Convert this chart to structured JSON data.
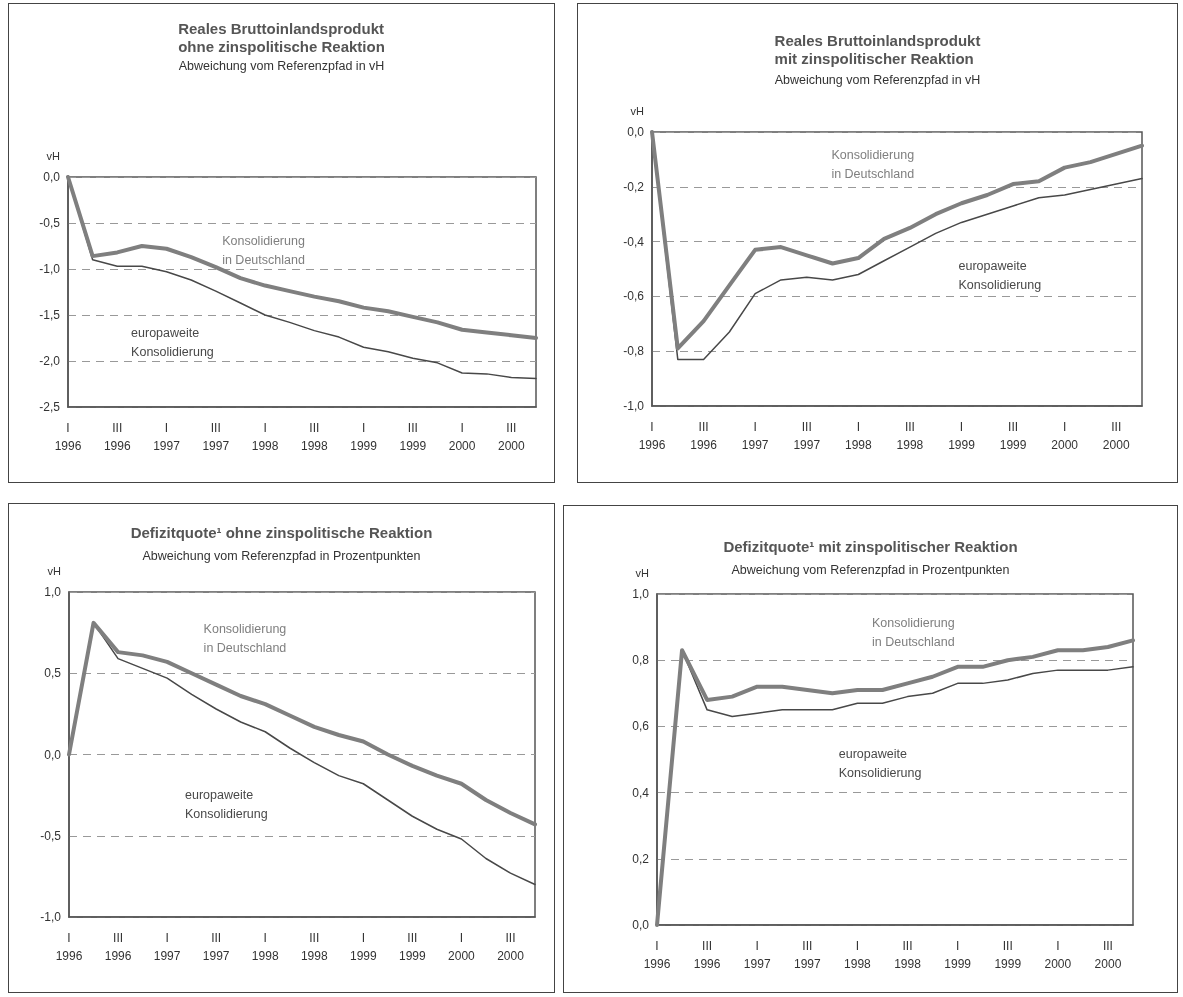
{
  "chart_data": [
    {
      "type": "line",
      "title": "Reales Bruttoinlandsprodukt\nohne zinspolitische Reaktion",
      "subtitle": "Abweichung vom Referenzpfad in vH",
      "ylabel": "vH",
      "categories": [
        "I\n1996",
        null,
        "III\n1996",
        null,
        "I\n1997",
        null,
        "III\n1997",
        null,
        "I\n1998",
        null,
        "III\n1998",
        null,
        "I\n1999",
        null,
        "III\n1999",
        null,
        "I\n2000",
        null,
        "III\n2000",
        null
      ],
      "series": [
        {
          "name": "Konsolidierung\nin Deutschland",
          "color": "#7f7f7f",
          "values": [
            0.0,
            -0.86,
            -0.82,
            -0.75,
            -0.78,
            -0.87,
            -0.98,
            -1.1,
            -1.18,
            -1.24,
            -1.3,
            -1.35,
            -1.42,
            -1.46,
            -1.52,
            -1.58,
            -1.66,
            -1.69,
            -1.72,
            -1.75
          ]
        },
        {
          "name": "europaweite\nKonsolidierung",
          "color": "#484848",
          "values": [
            0.0,
            -0.9,
            -0.97,
            -0.97,
            -1.03,
            -1.12,
            -1.24,
            -1.37,
            -1.5,
            -1.58,
            -1.67,
            -1.74,
            -1.85,
            -1.9,
            -1.97,
            -2.02,
            -2.13,
            -2.14,
            -2.18,
            -2.19
          ]
        }
      ],
      "ylim": [
        -2.5,
        0
      ],
      "yticks": [
        {
          "value": -2.5,
          "label": "-2,5"
        },
        {
          "value": -2,
          "label": "-2,0"
        },
        {
          "value": -1.5,
          "label": "-1,5"
        },
        {
          "value": -1,
          "label": "-1,0"
        },
        {
          "value": -0.5,
          "label": "-0,5"
        },
        {
          "value": 0,
          "label": "0,0"
        }
      ],
      "grid": "y",
      "legend": false,
      "marker": "none"
    },
    {
      "type": "line",
      "title": "Reales Bruttoinlandsprodukt\nmit zinspolitischer Reaktion",
      "subtitle": "Abweichung vom Referenzpfad in vH",
      "ylabel": "vH",
      "categories": [
        "I\n1996",
        null,
        "III\n1996",
        null,
        "I\n1997",
        null,
        "III\n1997",
        null,
        "I\n1998",
        null,
        "III\n1998",
        null,
        "I\n1999",
        null,
        "III\n1999",
        null,
        "I\n2000",
        null,
        "III\n2000",
        null
      ],
      "series": [
        {
          "name": "Konsolidierung\nin Deutschland",
          "color": "#7f7f7f",
          "values": [
            0.0,
            -0.79,
            -0.69,
            -0.56,
            -0.43,
            -0.42,
            -0.45,
            -0.48,
            -0.46,
            -0.39,
            -0.35,
            -0.3,
            -0.26,
            -0.23,
            -0.19,
            -0.18,
            -0.13,
            -0.11,
            -0.08,
            -0.05
          ]
        },
        {
          "name": "europaweite\nKonsolidierung",
          "color": "#484848",
          "values": [
            0.0,
            -0.83,
            -0.83,
            -0.73,
            -0.59,
            -0.54,
            -0.53,
            -0.54,
            -0.52,
            -0.47,
            -0.42,
            -0.37,
            -0.33,
            -0.3,
            -0.27,
            -0.24,
            -0.23,
            -0.21,
            -0.19,
            -0.17
          ]
        }
      ],
      "ylim": [
        -1,
        0
      ],
      "yticks": [
        {
          "value": -1,
          "label": "-1,0"
        },
        {
          "value": -0.8,
          "label": "-0,8"
        },
        {
          "value": -0.6,
          "label": "-0,6"
        },
        {
          "value": -0.4,
          "label": "-0,4"
        },
        {
          "value": -0.2,
          "label": "-0,2"
        },
        {
          "value": 0,
          "label": "0,0"
        }
      ],
      "grid": "y",
      "legend": false,
      "marker": "none"
    },
    {
      "type": "line",
      "title": "Defizitquote¹ ohne zinspolitische Reaktion",
      "subtitle": "Abweichung vom Referenzpfad in Prozentpunkten",
      "ylabel": "vH",
      "categories": [
        "I\n1996",
        null,
        "III\n1996",
        null,
        "I\n1997",
        null,
        "III\n1997",
        null,
        "I\n1998",
        null,
        "III\n1998",
        null,
        "I\n1999",
        null,
        "III\n1999",
        null,
        "I\n2000",
        null,
        "III\n2000",
        null
      ],
      "series": [
        {
          "name": "Konsolidierung\nin Deutschland",
          "color": "#7f7f7f",
          "values": [
            0.0,
            0.81,
            0.63,
            0.61,
            0.57,
            0.5,
            0.43,
            0.36,
            0.31,
            0.24,
            0.17,
            0.12,
            0.08,
            0.0,
            -0.07,
            -0.13,
            -0.18,
            -0.28,
            -0.36,
            -0.43
          ]
        },
        {
          "name": "europaweite\nKonsolidierung",
          "color": "#484848",
          "values": [
            0.0,
            0.81,
            0.59,
            0.53,
            0.47,
            0.37,
            0.28,
            0.2,
            0.14,
            0.04,
            -0.05,
            -0.13,
            -0.18,
            -0.28,
            -0.38,
            -0.46,
            -0.52,
            -0.64,
            -0.73,
            -0.8
          ]
        }
      ],
      "ylim": [
        -1,
        1
      ],
      "yticks": [
        {
          "value": -1,
          "label": "-1,0"
        },
        {
          "value": -0.5,
          "label": "-0,5"
        },
        {
          "value": 0,
          "label": "0,0"
        },
        {
          "value": 0.5,
          "label": "0,5"
        },
        {
          "value": 1,
          "label": "1,0"
        }
      ],
      "grid": "y",
      "legend": false,
      "marker": "none"
    },
    {
      "type": "line",
      "title": "Defizitquote¹ mit zinspolitischer Reaktion",
      "subtitle": "Abweichung vom Referenzpfad in Prozentpunkten",
      "ylabel": "vH",
      "categories": [
        "I\n1996",
        null,
        "III\n1996",
        null,
        "I\n1997",
        null,
        "III\n1997",
        null,
        "I\n1998",
        null,
        "III\n1998",
        null,
        "I\n1999",
        null,
        "III\n1999",
        null,
        "I\n2000",
        null,
        "III\n2000",
        null
      ],
      "series": [
        {
          "name": "Konsolidierung\nin Deutschland",
          "color": "#7f7f7f",
          "values": [
            0.0,
            0.83,
            0.68,
            0.69,
            0.72,
            0.72,
            0.71,
            0.7,
            0.71,
            0.71,
            0.73,
            0.75,
            0.78,
            0.78,
            0.8,
            0.81,
            0.83,
            0.83,
            0.84,
            0.86
          ]
        },
        {
          "name": "europaweite\nKonsolidierung",
          "color": "#484848",
          "values": [
            0.0,
            0.83,
            0.65,
            0.63,
            0.64,
            0.65,
            0.65,
            0.65,
            0.67,
            0.67,
            0.69,
            0.7,
            0.73,
            0.73,
            0.74,
            0.76,
            0.77,
            0.77,
            0.77,
            0.78
          ]
        }
      ],
      "ylim": [
        0,
        1
      ],
      "yticks": [
        {
          "value": 0,
          "label": "0,0"
        },
        {
          "value": 0.2,
          "label": "0,2"
        },
        {
          "value": 0.4,
          "label": "0,4"
        },
        {
          "value": 0.6,
          "label": "0,6"
        },
        {
          "value": 0.8,
          "label": "0,8"
        },
        {
          "value": 1,
          "label": "1,0"
        }
      ],
      "grid": "y",
      "legend": false,
      "marker": "none"
    }
  ]
}
